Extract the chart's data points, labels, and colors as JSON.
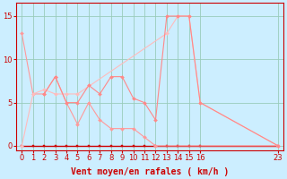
{
  "background_color": "#cceeff",
  "grid_color": "#99ccbb",
  "xlabel": "Vent moyen/en rafales ( km/h )",
  "xlabel_color": "#cc0000",
  "xlabel_fontsize": 7,
  "tick_color": "#cc0000",
  "tick_fontsize": 6,
  "xlim": [
    -0.5,
    23.5
  ],
  "ylim": [
    -0.5,
    16.5
  ],
  "yticks": [
    0,
    5,
    10,
    15
  ],
  "xticks": [
    0,
    1,
    2,
    3,
    4,
    5,
    6,
    7,
    8,
    9,
    10,
    11,
    12,
    13,
    14,
    15,
    16,
    23
  ],
  "series": [
    {
      "x": [
        0,
        1,
        2,
        3,
        4,
        5,
        6,
        7,
        8,
        9,
        10,
        11,
        12,
        13,
        14,
        15,
        16,
        23
      ],
      "y": [
        0,
        0,
        0,
        0,
        0,
        0,
        0,
        0,
        0,
        0,
        0,
        0,
        0,
        0,
        0,
        0,
        0,
        0
      ],
      "color": "#cc0000",
      "marker": "s",
      "markersize": 2.0,
      "linewidth": 1.0
    },
    {
      "x": [
        0,
        1,
        2,
        3,
        4,
        5,
        6,
        7,
        8,
        9,
        10,
        11,
        12,
        23
      ],
      "y": [
        13,
        6,
        6,
        8,
        5,
        2.5,
        5,
        3,
        2,
        2,
        2,
        1,
        0,
        0
      ],
      "color": "#ff9999",
      "marker": "D",
      "markersize": 2.0,
      "linewidth": 0.8
    },
    {
      "x": [
        0,
        1,
        2,
        3,
        4,
        5,
        13,
        14,
        15,
        16,
        23
      ],
      "y": [
        0,
        6,
        6.5,
        6,
        6,
        6,
        13,
        15,
        15,
        5,
        0
      ],
      "color": "#ffbbbb",
      "marker": "D",
      "markersize": 2.0,
      "linewidth": 0.8
    },
    {
      "x": [
        2,
        3,
        4,
        5,
        6,
        7,
        8,
        9,
        10,
        11,
        12,
        13,
        14,
        15,
        16,
        23
      ],
      "y": [
        6,
        8,
        5,
        5,
        7,
        6,
        8,
        8,
        5.5,
        5,
        3,
        15,
        15,
        15,
        5,
        0
      ],
      "color": "#ff8888",
      "marker": "D",
      "markersize": 2.0,
      "linewidth": 0.8
    }
  ]
}
